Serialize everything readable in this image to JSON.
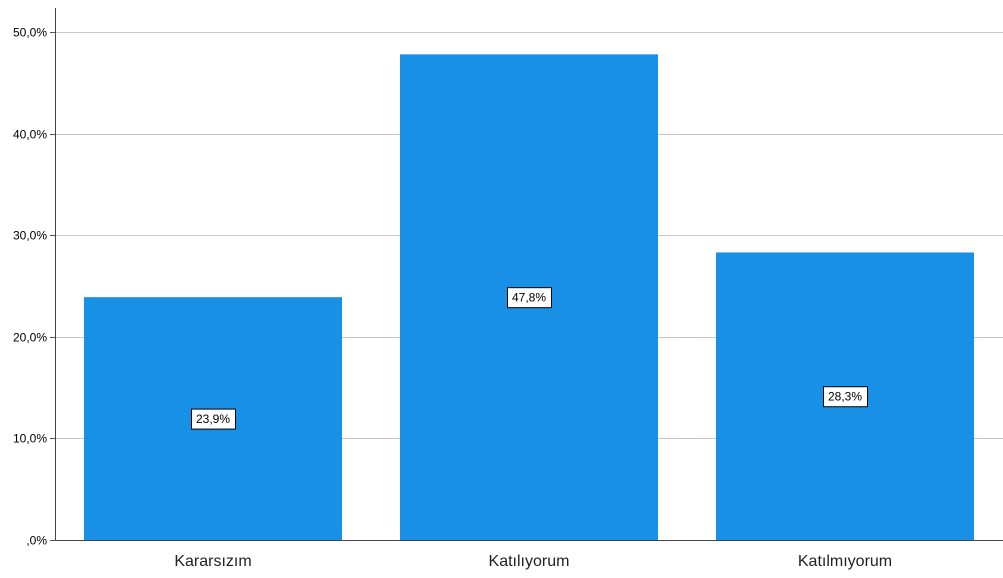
{
  "chart_data": {
    "type": "bar",
    "title": "",
    "xlabel": "",
    "ylabel": "",
    "categories": [
      "Kararsızım",
      "Katılıyorum",
      "Katılmıyorum"
    ],
    "values": [
      23.9,
      47.8,
      28.3
    ],
    "data_labels": [
      "23,9%",
      "47,8%",
      "28,3%"
    ],
    "ylim": [
      0,
      50
    ],
    "yticks": [
      0,
      10,
      20,
      30,
      40,
      50
    ],
    "ytick_labels": [
      ",0%",
      "10,0%",
      "20,0%",
      "30,0%",
      "40,0%",
      "50,0%"
    ],
    "grid": true,
    "bar_color": "#1790e6",
    "legend": "none"
  }
}
